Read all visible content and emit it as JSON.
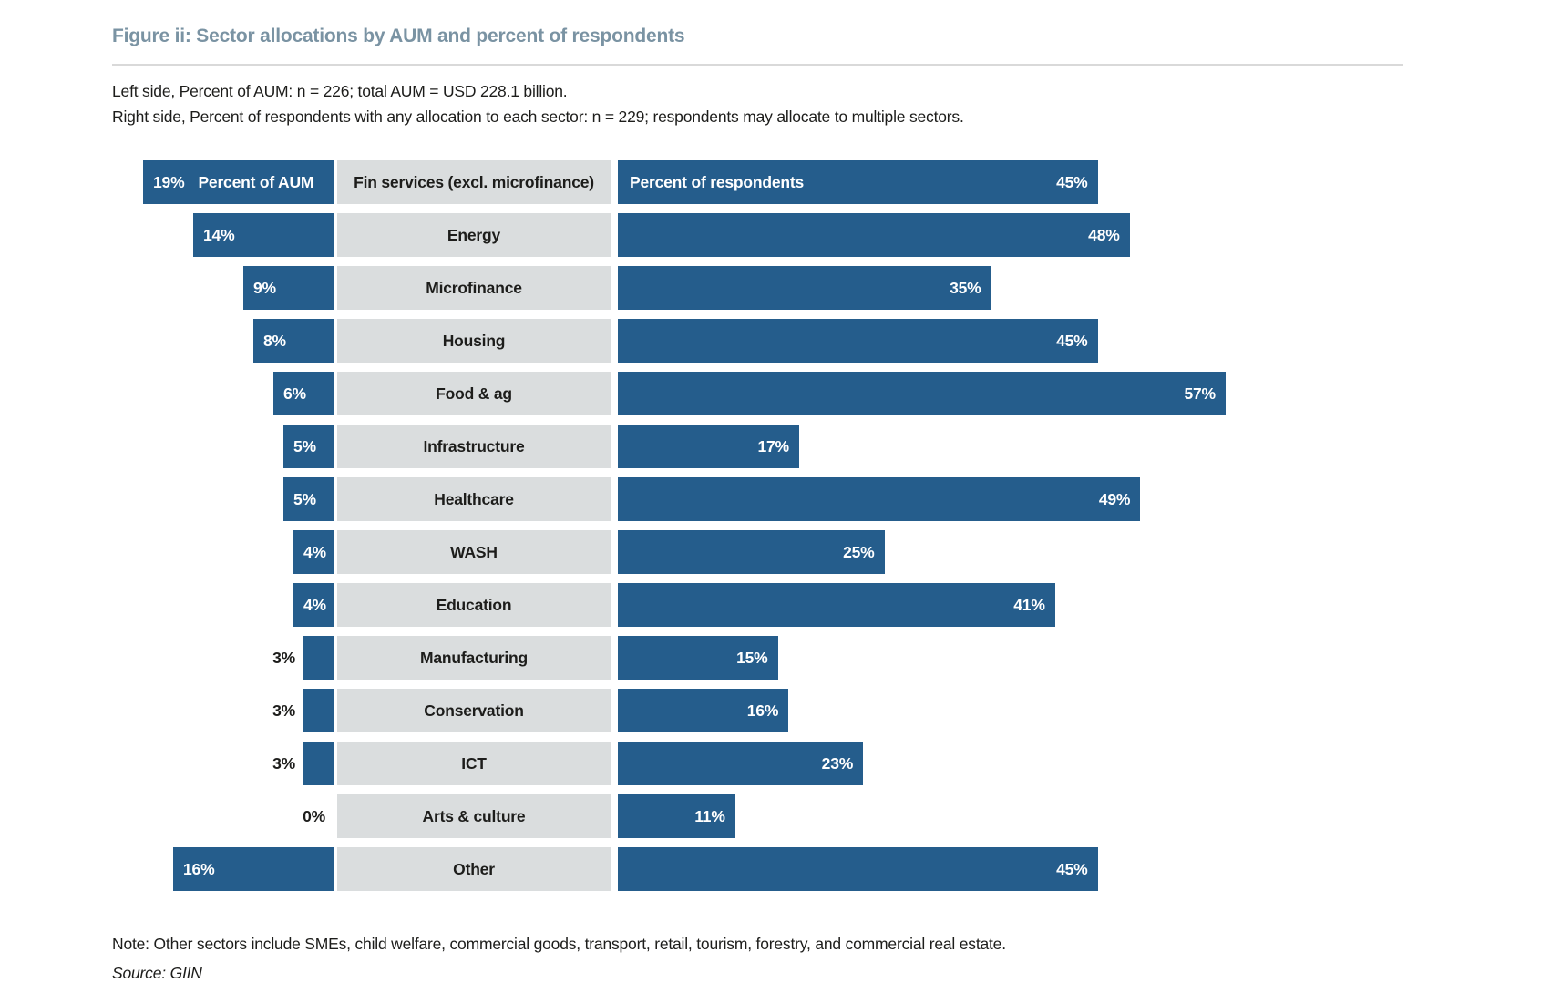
{
  "figure": {
    "title": "Figure ii: Sector allocations by AUM and percent of respondents",
    "subtitle_line1": "Left side, Percent of AUM: n = 226; total AUM = USD 228.1 billion.",
    "subtitle_line2": "Right side, Percent of respondents with any allocation to each sector: n = 229; respondents may allocate to multiple sectors.",
    "note": "Note: Other sectors include SMEs, child welfare, commercial goods, transport, retail, tourism, forestry, and commercial real estate.",
    "source": "Source: GIIN"
  },
  "colors": {
    "bar_blue": "#255d8c",
    "band_gray": "#daddde",
    "title_gray_blue": "#7a93a3",
    "text_dark": "#1d1d1b",
    "rule_gray": "#d9d9d9"
  },
  "chart_data": {
    "type": "bar",
    "orientation": "horizontal-butterfly",
    "left_axis_label": "Percent of AUM",
    "right_axis_label": "Percent of respondents",
    "left_axis_range": [
      0,
      19
    ],
    "right_axis_range": [
      0,
      57
    ],
    "value_suffix": "%",
    "categories": [
      "Fin services (excl. microfinance)",
      "Energy",
      "Microfinance",
      "Housing",
      "Food & ag",
      "Infrastructure",
      "Healthcare",
      "WASH",
      "Education",
      "Manufacturing",
      "Conservation",
      "ICT",
      "Arts & culture",
      "Other"
    ],
    "series": [
      {
        "name": "Percent of AUM",
        "values": [
          19,
          14,
          9,
          8,
          6,
          5,
          5,
          4,
          4,
          3,
          3,
          3,
          0,
          16
        ]
      },
      {
        "name": "Percent of respondents",
        "values": [
          45,
          48,
          35,
          45,
          57,
          17,
          49,
          25,
          41,
          15,
          16,
          23,
          11,
          45
        ]
      }
    ]
  }
}
